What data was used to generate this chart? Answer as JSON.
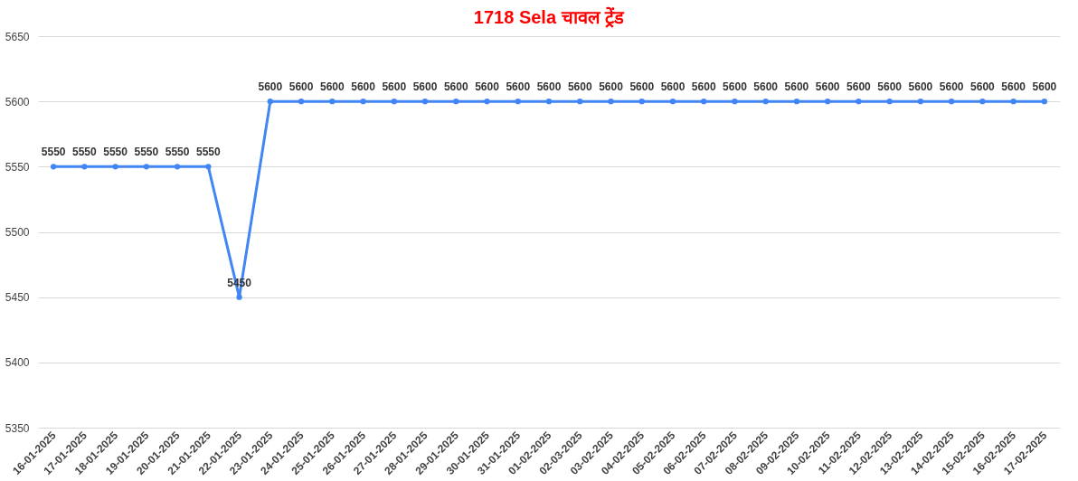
{
  "chart_data": {
    "type": "line",
    "title": "1718 Sela चावल ट्रेंड",
    "categories": [
      "16-01-2025",
      "17-01-2025",
      "18-01-2025",
      "19-01-2025",
      "20-01-2025",
      "21-01-2025",
      "22-01-2025",
      "23-01-2025",
      "24-01-2025",
      "25-01-2025",
      "26-01-2025",
      "27-01-2025",
      "28-01-2025",
      "29-01-2025",
      "30-01-2025",
      "31-01-2025",
      "01-02-2025",
      "02-03-2025",
      "03-02-2025",
      "04-02-2025",
      "05-02-2025",
      "06-02-2025",
      "07-02-2025",
      "08-02-2025",
      "09-02-2025",
      "10-02-2025",
      "11-02-2025",
      "12-02-2025",
      "13-02-2025",
      "14-02-2025",
      "15-02-2025",
      "16-02-2025",
      "17-02-2025"
    ],
    "series": [
      {
        "color": "#4285f4",
        "values": [
          5550,
          5550,
          5550,
          5550,
          5550,
          5550,
          5450,
          5600,
          5600,
          5600,
          5600,
          5600,
          5600,
          5600,
          5600,
          5600,
          5600,
          5600,
          5600,
          5600,
          5600,
          5600,
          5600,
          5600,
          5600,
          5600,
          5600,
          5600,
          5600,
          5600,
          5600,
          5600,
          5600
        ]
      }
    ],
    "ylim": [
      5350,
      5650
    ],
    "yticks": [
      5350,
      5400,
      5450,
      5500,
      5550,
      5600,
      5650
    ],
    "grid": "y",
    "marker": "circle",
    "line_style": "solid",
    "data_labels": true
  }
}
